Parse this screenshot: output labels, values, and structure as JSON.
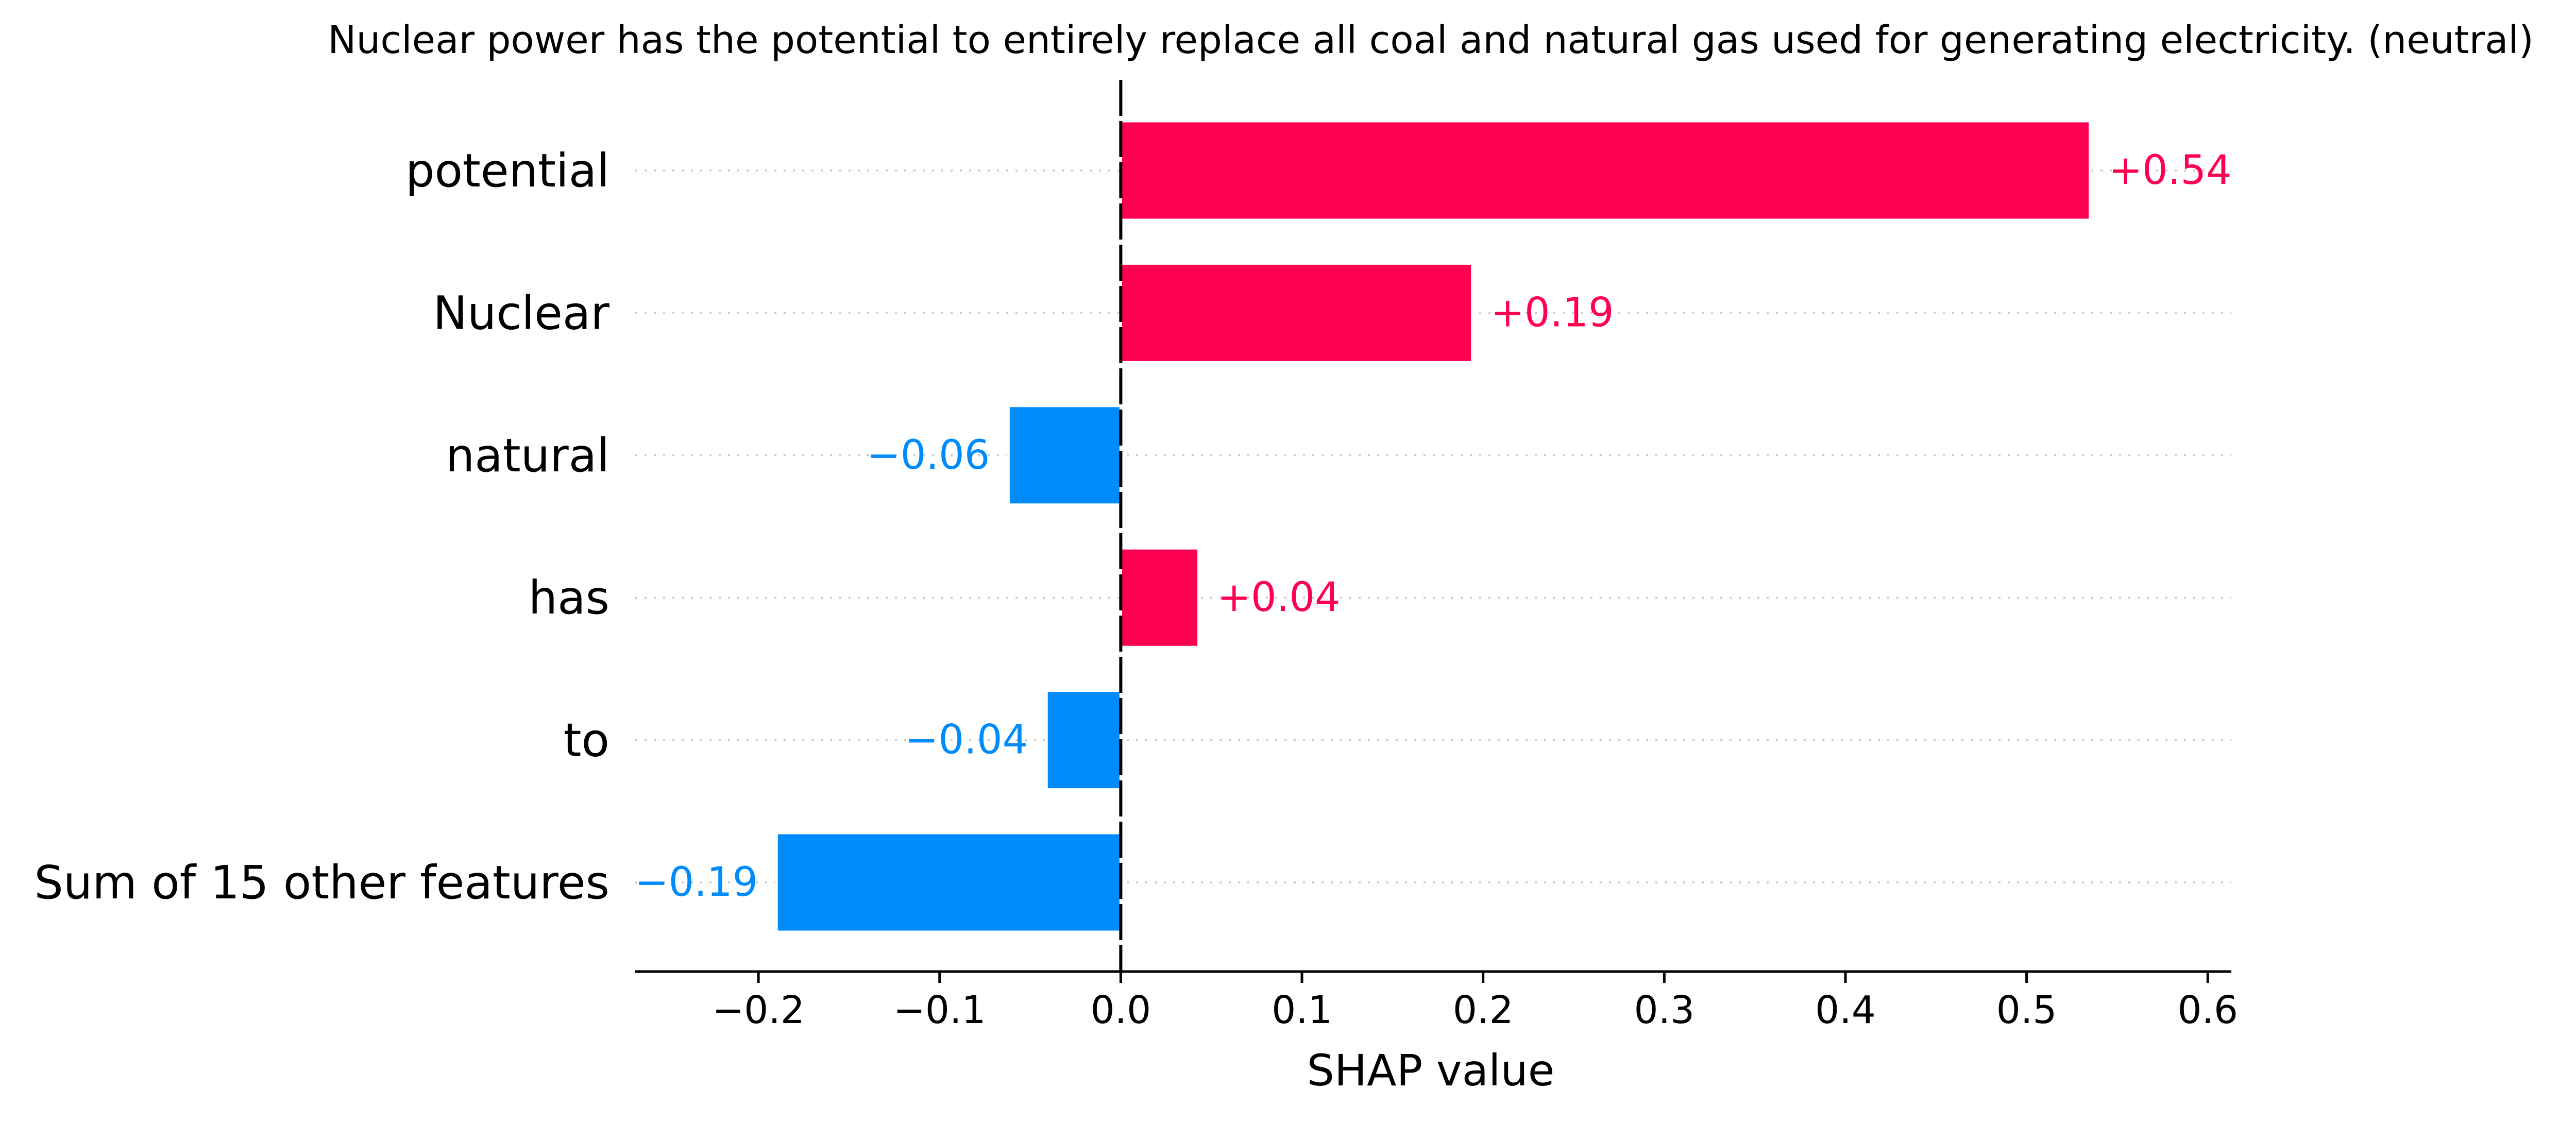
{
  "chart_data": {
    "type": "bar",
    "title": "Nuclear power has the potential to entirely replace all coal and natural gas used for generating electricity. (neutral)",
    "xlabel": "SHAP value",
    "ylabel": "",
    "categories": [
      "potential",
      "Nuclear",
      "natural",
      "has",
      "to",
      "Sum of 15 other features"
    ],
    "values": [
      0.535,
      0.194,
      -0.062,
      0.043,
      -0.041,
      -0.19
    ],
    "value_labels": [
      "+0.54",
      "+0.19",
      "−0.06",
      "+0.04",
      "−0.04",
      "−0.19"
    ],
    "xlim": [
      -0.268,
      0.613
    ],
    "xticks": [
      -0.2,
      -0.1,
      0.0,
      0.1,
      0.2,
      0.3,
      0.4,
      0.5,
      0.6
    ],
    "xtick_labels": [
      "−0.2",
      "−0.1",
      "0.0",
      "0.1",
      "0.2",
      "0.3",
      "0.4",
      "0.5",
      "0.6"
    ],
    "grid": "horizontal dotted lines per feature row",
    "legend": "none",
    "colors": {
      "positive": "#ff0051",
      "negative": "#008bfb",
      "zero_line": "#000000",
      "axis": "#000000",
      "grid": "#cccccc",
      "text": "#000000"
    }
  }
}
